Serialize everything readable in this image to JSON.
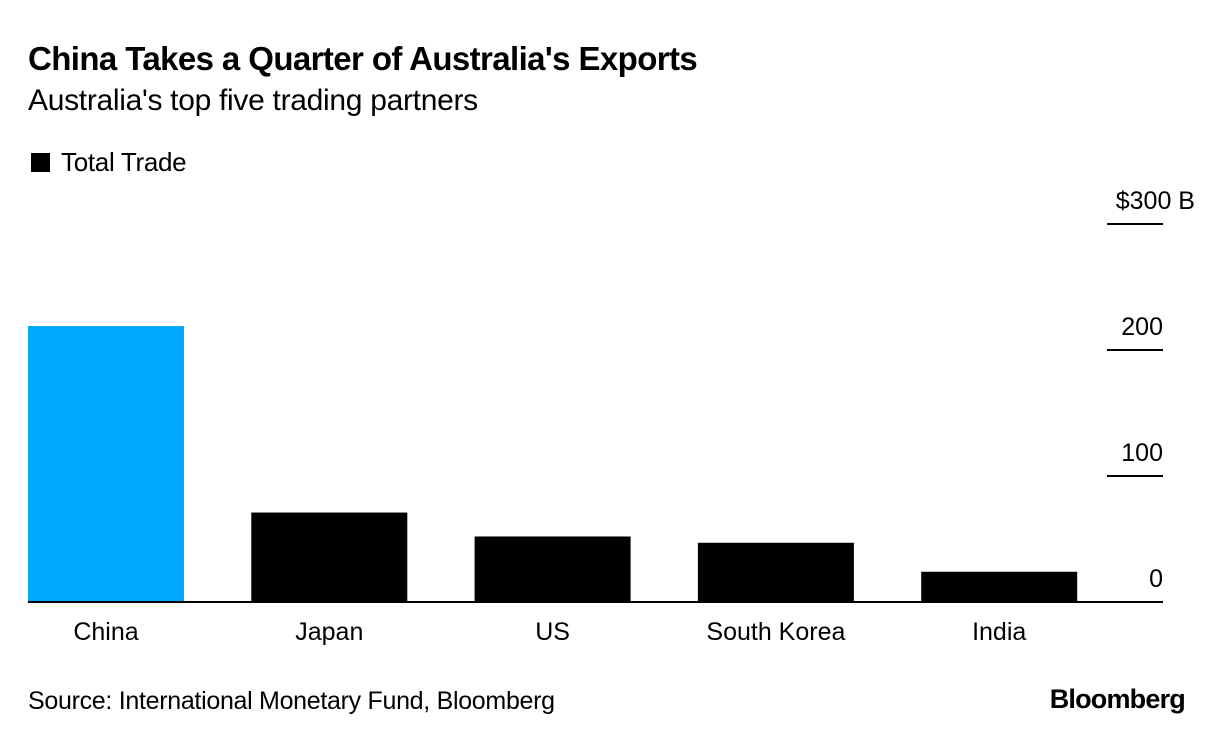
{
  "header": {
    "title": "China Takes a Quarter of Australia's Exports",
    "subtitle": "Australia's top five trading partners"
  },
  "legend": {
    "items": [
      {
        "label": "Total Trade",
        "color": "#000000"
      }
    ]
  },
  "footer": {
    "source": "Source: International Monetary Fund, Bloomberg",
    "logo_text": "Bloomberg"
  },
  "chart_data": {
    "type": "bar",
    "title": "China Takes a Quarter of Australia's Exports",
    "subtitle": "Australia's top five trading partners",
    "xlabel": "",
    "ylabel": "",
    "categories": [
      "China",
      "Japan",
      "US",
      "South Korea",
      "India"
    ],
    "series": [
      {
        "name": "Total Trade",
        "values": [
          219,
          71,
          52,
          47,
          24
        ]
      }
    ],
    "colors": [
      "#00a8ff",
      "#000000",
      "#000000",
      "#000000",
      "#000000"
    ],
    "ylim": [
      0,
      300
    ],
    "yticks": [
      0,
      100,
      200,
      300
    ],
    "ytick_labels": [
      "0",
      "100",
      "200",
      "$300 B"
    ],
    "y_axis_side": "right",
    "grid": false,
    "legend_position": "top-left"
  }
}
